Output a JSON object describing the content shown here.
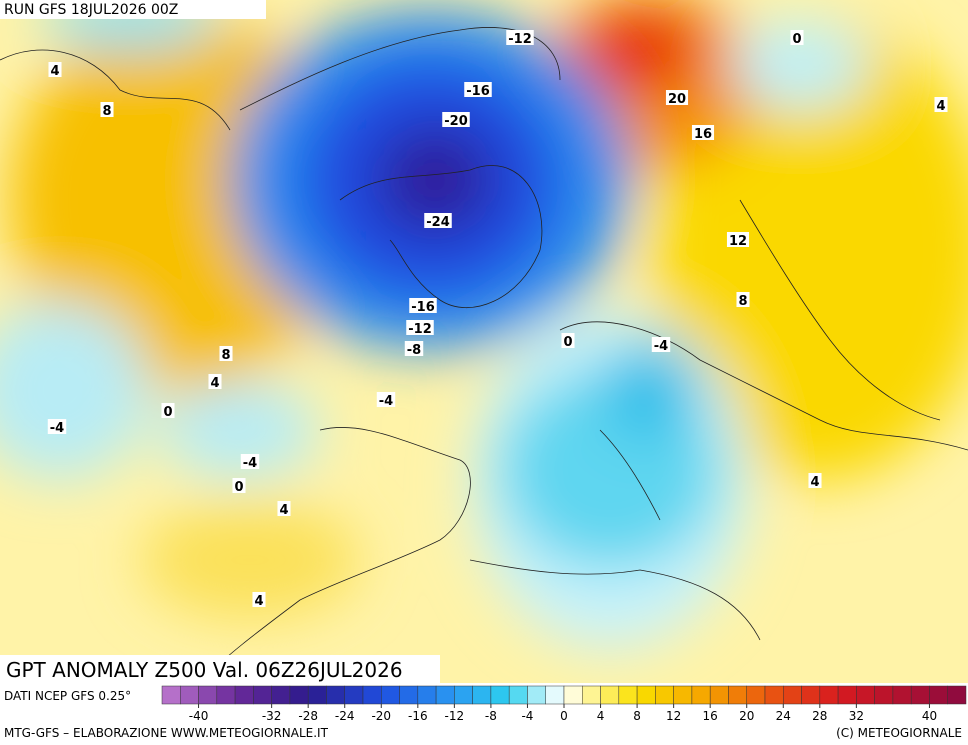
{
  "header": {
    "run": "RUN GFS 18JUL2026 00Z"
  },
  "map": {
    "title": "GPT ANOMALY Z500 Val. 06Z26JUL2026",
    "contour_labels": [
      "-12",
      "0",
      "4",
      "8",
      "-16",
      "20",
      "-20",
      "16",
      "-24",
      "12",
      "4",
      "8",
      "-16",
      "-12",
      "-8",
      "0",
      "-4",
      "8",
      "4",
      "0",
      "-4",
      "-4",
      "-4",
      "0",
      "4",
      "4",
      "4"
    ]
  },
  "legend": {
    "source": "DATI NCEP GFS 0.25°",
    "ticks": [
      "-40",
      "-32",
      "-28",
      "-24",
      "-20",
      "-16",
      "-12",
      "-8",
      "-4",
      "0",
      "4",
      "8",
      "12",
      "16",
      "20",
      "24",
      "28",
      "32",
      "40"
    ]
  },
  "footer": {
    "left": "MTG-GFS – ELABORAZIONE WWW.METEOGIORNALE.IT",
    "right": "(C) METEOGIORNALE"
  }
}
